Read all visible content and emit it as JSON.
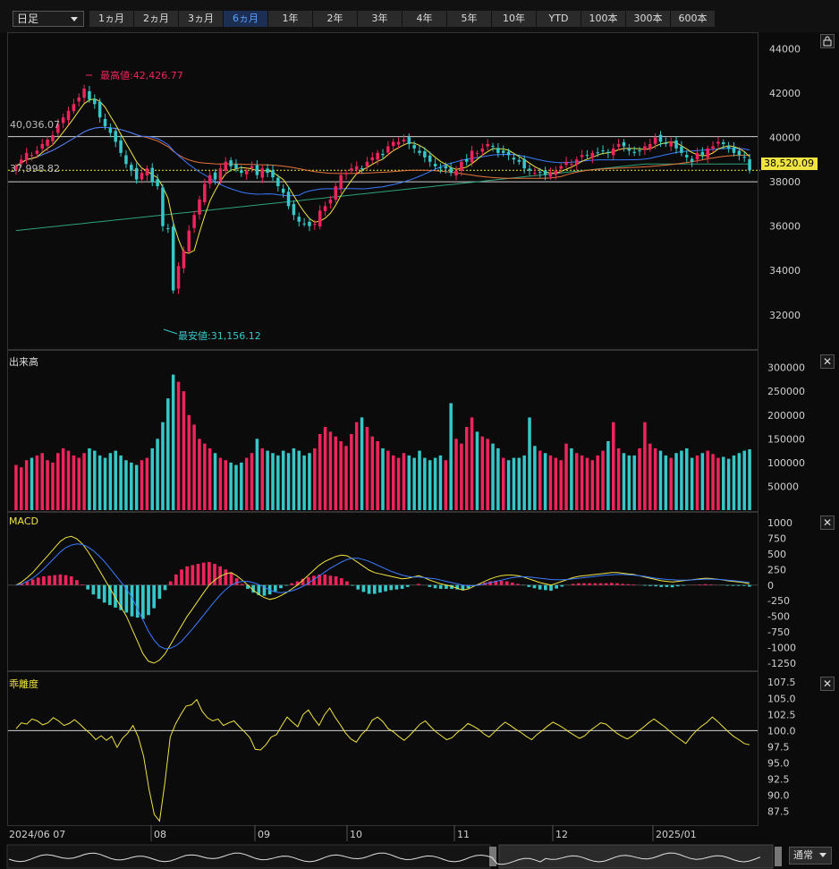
{
  "toolbar": {
    "timeframe": "日足",
    "ranges": [
      "1ヵ月",
      "2ヵ月",
      "3ヵ月",
      "6ヵ月",
      "1年",
      "2年",
      "3年",
      "4年",
      "5年",
      "10年",
      "YTD",
      "100本",
      "300本",
      "600本"
    ],
    "active_range": "6ヵ月"
  },
  "price_panel": {
    "high_label": "最高値:42,426.77",
    "low_label": "最安値:31,156.12",
    "hline_upper_label": "40,036.07",
    "hline_lower_label": "37,998.82",
    "current_price": "38,520.09",
    "y_ticks": [
      "44000",
      "42000",
      "40000",
      "38000",
      "36000",
      "34000",
      "32000"
    ]
  },
  "volume_panel": {
    "title": "出来高",
    "y_ticks": [
      "300000",
      "250000",
      "200000",
      "150000",
      "100000",
      "50000"
    ]
  },
  "macd_panel": {
    "title": "MACD",
    "y_ticks": [
      "1000",
      "750",
      "500",
      "250",
      "0",
      "-250",
      "-500",
      "-750",
      "-1000",
      "-1250"
    ]
  },
  "kairi_panel": {
    "title": "乖離度",
    "y_ticks": [
      "107.5",
      "105.0",
      "102.5",
      "100.0",
      "97.5",
      "95.0",
      "92.5",
      "90.0",
      "87.5"
    ]
  },
  "x_axis": {
    "labels": [
      "2024/06 07",
      "08",
      "09",
      "10",
      "11",
      "12",
      "2025/01"
    ]
  },
  "footer": {
    "mode_label": "通常"
  },
  "colors": {
    "up": "#f0245c",
    "down": "#36c8c8",
    "macd": "#f0e442",
    "signal": "#3b7bff",
    "high_label": "#f0245c",
    "low_label": "#36c8c8",
    "price_tag": "#f0e442"
  },
  "chart_data": [
    {
      "type": "candlestick",
      "title": "",
      "ylim": [
        30500,
        44700
      ],
      "approx_close_series": [
        38700,
        39000,
        39300,
        39200,
        39400,
        39700,
        39900,
        40100,
        40600,
        40900,
        41200,
        41500,
        41800,
        42200,
        41700,
        41500,
        40900,
        40500,
        40200,
        39800,
        39300,
        38800,
        38500,
        38100,
        38400,
        38600,
        38000,
        37800,
        36000,
        35900,
        33100,
        34200,
        34900,
        35800,
        36500,
        37200,
        37900,
        38300,
        38100,
        38600,
        38900,
        38700,
        38600,
        38400,
        38500,
        38700,
        38300,
        38600,
        38400,
        38200,
        37800,
        37500,
        36900,
        36500,
        36200,
        36100,
        36000,
        36100,
        36700,
        36900,
        37200,
        37800,
        38300,
        38400,
        38600,
        38700,
        38600,
        38900,
        39100,
        39300,
        39200,
        39600,
        39800,
        39800,
        39900,
        39700,
        39500,
        39300,
        39100,
        38900,
        38700,
        38600,
        38600,
        38400,
        38500,
        38900,
        38900,
        39400,
        39300,
        39500,
        39700,
        39600,
        39300,
        39300,
        39200,
        39000,
        38900,
        38600,
        38500,
        38400,
        38400,
        38300,
        38400,
        38500,
        38700,
        38900,
        38800,
        39000,
        39200,
        39200,
        39300,
        39300,
        39400,
        39300,
        39500,
        39700,
        39600,
        39400,
        39300,
        39400,
        39600,
        39700,
        40000,
        39800,
        39700,
        39800,
        39500,
        39300,
        39100,
        38900,
        39300,
        39200,
        39500,
        39600,
        39800,
        39700,
        39500,
        39300,
        39200,
        39100,
        38520
      ],
      "annotations": {
        "high": 42426.77,
        "low": 31156.12,
        "hline_upper": 40036.07,
        "hline_lower": 37998.82,
        "last": 38520.09
      }
    },
    {
      "type": "bar",
      "title": "出来高",
      "ylim": [
        0,
        320000
      ],
      "approx_values": [
        95000,
        90000,
        105000,
        110000,
        115000,
        120000,
        105000,
        100000,
        120000,
        130000,
        125000,
        115000,
        110000,
        120000,
        130000,
        125000,
        115000,
        110000,
        120000,
        125000,
        115000,
        105000,
        100000,
        95000,
        105000,
        110000,
        130000,
        150000,
        185000,
        235000,
        285000,
        270000,
        250000,
        200000,
        180000,
        150000,
        140000,
        130000,
        120000,
        110000,
        105000,
        100000,
        95000,
        100000,
        110000,
        120000,
        150000,
        130000,
        125000,
        120000,
        115000,
        125000,
        120000,
        130000,
        125000,
        115000,
        120000,
        130000,
        160000,
        175000,
        165000,
        155000,
        145000,
        135000,
        160000,
        185000,
        195000,
        175000,
        155000,
        145000,
        130000,
        125000,
        115000,
        110000,
        120000,
        115000,
        110000,
        125000,
        110000,
        105000,
        110000,
        115000,
        105000,
        225000,
        150000,
        140000,
        175000,
        195000,
        165000,
        155000,
        150000,
        140000,
        130000,
        110000,
        105000,
        110000,
        110000,
        115000,
        195000,
        135000,
        125000,
        120000,
        115000,
        110000,
        105000,
        140000,
        130000,
        120000,
        115000,
        110000,
        105000,
        115000,
        125000,
        145000,
        185000,
        130000,
        120000,
        115000,
        115000,
        130000,
        185000,
        140000,
        130000,
        125000,
        115000,
        110000,
        120000,
        125000,
        130000,
        110000,
        115000,
        120000,
        125000,
        118000,
        110000,
        112000,
        108000,
        115000,
        120000,
        125000,
        128000
      ]
    },
    {
      "type": "line",
      "title": "MACD",
      "ylim": [
        -1350,
        1100
      ],
      "series": [
        {
          "name": "MACD",
          "approx_values": [
            0,
            50,
            120,
            200,
            300,
            400,
            500,
            600,
            700,
            760,
            780,
            740,
            660,
            540,
            400,
            250,
            100,
            -50,
            -200,
            -350,
            -500,
            -700,
            -900,
            -1100,
            -1220,
            -1250,
            -1200,
            -1100,
            -950,
            -800,
            -650,
            -500,
            -380,
            -250,
            -120,
            0,
            80,
            140,
            180,
            200,
            150,
            80,
            0,
            -80,
            -150,
            -200,
            -230,
            -210,
            -170,
            -120,
            -60,
            0,
            80,
            160,
            240,
            320,
            380,
            420,
            460,
            480,
            470,
            420,
            360,
            300,
            240,
            200,
            180,
            160,
            140,
            120,
            100,
            110,
            130,
            150,
            120,
            80,
            50,
            20,
            0,
            -20,
            -50,
            -80,
            -60,
            -20,
            20,
            60,
            100,
            130,
            150,
            160,
            160,
            150,
            130,
            100,
            70,
            40,
            20,
            0,
            30,
            60,
            90,
            120,
            140,
            150,
            160,
            170,
            180,
            190,
            200,
            200,
            190,
            180,
            170,
            150,
            130,
            110,
            90,
            70,
            60,
            50,
            60,
            70,
            80,
            90,
            100,
            110,
            105,
            95,
            85,
            70,
            60,
            50,
            40,
            20
          ]
        },
        {
          "name": "Signal",
          "approx_values": [
            0,
            20,
            60,
            110,
            180,
            260,
            350,
            440,
            530,
            600,
            640,
            660,
            650,
            610,
            550,
            470,
            380,
            270,
            160,
            50,
            -60,
            -200,
            -380,
            -560,
            -740,
            -880,
            -980,
            -1020,
            -1010,
            -970,
            -900,
            -800,
            -700,
            -590,
            -480,
            -370,
            -260,
            -160,
            -70,
            0,
            40,
            60,
            60,
            40,
            10,
            -30,
            -80,
            -110,
            -120,
            -110,
            -90,
            -60,
            -20,
            30,
            90,
            150,
            210,
            270,
            320,
            370,
            410,
            430,
            430,
            410,
            380,
            340,
            300,
            260,
            220,
            190,
            160,
            140,
            130,
            130,
            120,
            110,
            100,
            80,
            60,
            40,
            20,
            0,
            -10,
            -10,
            0,
            20,
            40,
            60,
            80,
            100,
            120,
            130,
            135,
            130,
            120,
            110,
            100,
            90,
            85,
            85,
            90,
            100,
            110,
            120,
            130,
            140,
            150,
            160,
            165,
            170,
            170,
            165,
            160,
            150,
            140,
            125,
            110,
            100,
            90,
            85,
            80,
            80,
            80,
            85,
            90,
            95,
            95,
            92,
            88,
            80,
            72,
            62,
            52,
            45,
            38
          ]
        }
      ]
    },
    {
      "type": "line",
      "title": "乖離度",
      "ylim": [
        85.5,
        108.5
      ],
      "series": [
        {
          "name": "乖離度",
          "approx_values": [
            100.3,
            101.2,
            101.0,
            101.8,
            101.5,
            100.9,
            101.2,
            102.0,
            101.5,
            100.8,
            101.1,
            101.7,
            101.0,
            100.2,
            99.5,
            98.6,
            99.2,
            98.5,
            99.1,
            97.4,
            98.8,
            99.6,
            100.8,
            99.0,
            96.0,
            91.0,
            87.0,
            86.0,
            92.0,
            99.0,
            101.0,
            102.5,
            103.8,
            104.0,
            104.8,
            103.0,
            102.0,
            101.5,
            101.8,
            100.8,
            101.2,
            101.5,
            100.6,
            99.8,
            98.9,
            97.1,
            97.0,
            97.8,
            99.0,
            99.4,
            100.8,
            102.1,
            101.3,
            100.6,
            102.5,
            103.2,
            101.9,
            100.8,
            102.4,
            103.5,
            102.1,
            100.9,
            99.6,
            98.7,
            98.2,
            99.4,
            100.2,
            101.6,
            102.1,
            101.4,
            100.3,
            99.8,
            99.1,
            98.5,
            99.2,
            100.1,
            101.0,
            101.5,
            100.6,
            99.8,
            99.2,
            98.6,
            98.9,
            99.7,
            100.3,
            101.1,
            100.7,
            100.2,
            99.5,
            99.0,
            99.8,
            100.6,
            101.3,
            100.8,
            100.2,
            99.7,
            99.1,
            98.6,
            99.4,
            100.0,
            100.7,
            101.3,
            100.9,
            100.4,
            99.8,
            99.3,
            98.8,
            99.2,
            100.0,
            100.6,
            101.2,
            101.0,
            100.3,
            99.6,
            99.1,
            98.7,
            99.2,
            99.9,
            100.5,
            101.2,
            101.8,
            101.2,
            100.6,
            99.9,
            99.2,
            98.6,
            98.0,
            99.1,
            100.0,
            100.7,
            101.3,
            102.1,
            101.4,
            100.6,
            99.8,
            99.1,
            98.6,
            98.0,
            97.8
          ]
        }
      ]
    }
  ]
}
